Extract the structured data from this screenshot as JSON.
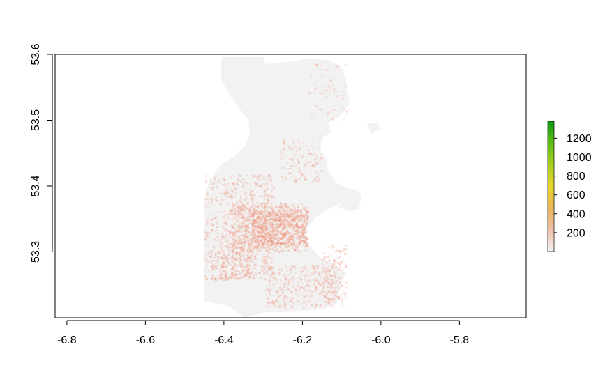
{
  "chart_data": {
    "type": "heatmap",
    "title": "",
    "xlabel": "",
    "ylabel": "",
    "xlim": [
      -6.83,
      -5.63
    ],
    "ylim": [
      53.2,
      53.6
    ],
    "x_ticks": [
      "-6.8",
      "-6.6",
      "-6.4",
      "-6.2",
      "-6.0",
      "-5.8"
    ],
    "x_tick_values": [
      -6.8,
      -6.6,
      -6.4,
      -6.2,
      -6.0,
      -5.8
    ],
    "y_ticks": [
      "53.3",
      "53.4",
      "53.5",
      "53.6"
    ],
    "y_tick_values": [
      53.3,
      53.4,
      53.5,
      53.6
    ],
    "legend": {
      "placement": "right",
      "ticks": [
        "200",
        "400",
        "600",
        "800",
        "1000",
        "1200"
      ],
      "tick_values": [
        200,
        400,
        600,
        800,
        1000,
        1200
      ],
      "range": [
        0,
        1380
      ],
      "colors": [
        "#f2f2f2",
        "#eebfa8",
        "#e8b558",
        "#e6d628",
        "#a7cf1f",
        "#5fbd17",
        "#0f9a10"
      ]
    },
    "background_value_color": "#f2f2f2",
    "low_value_color": "#ef9f8a"
  }
}
